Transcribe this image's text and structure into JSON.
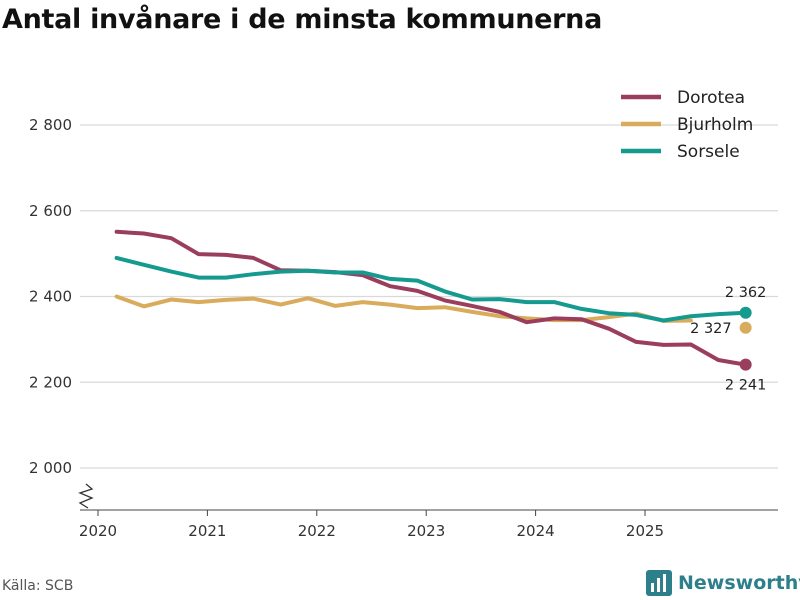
{
  "header": {
    "title": "Antal invånare i de minsta kommunerna"
  },
  "footer": {
    "source": "Källa: SCB",
    "brand": "Newsworthy"
  },
  "chart_data": {
    "type": "line",
    "title": "Antal invånare i de minsta kommunerna",
    "xlabel": "",
    "ylabel": "",
    "ylim": [
      2000,
      2900
    ],
    "y_ticks": [
      2000,
      2200,
      2400,
      2600,
      2800
    ],
    "y_tick_labels": [
      "2 000",
      "2 200",
      "2 400",
      "2 600",
      "2 800"
    ],
    "xlim": [
      2020.0,
      2026.2
    ],
    "x_ticks": [
      2020,
      2021,
      2022,
      2023,
      2024,
      2025
    ],
    "x_tick_labels": [
      "2020",
      "2021",
      "2022",
      "2023",
      "2024",
      "2025"
    ],
    "grid": "horizontal",
    "axis_break": true,
    "legend_position": "top-right",
    "x": [
      2020.17,
      2020.42,
      2020.67,
      2020.92,
      2021.17,
      2021.42,
      2021.67,
      2021.92,
      2022.17,
      2022.42,
      2022.67,
      2022.92,
      2023.17,
      2023.42,
      2023.67,
      2023.92,
      2024.17,
      2024.42,
      2024.67,
      2024.92,
      2025.17,
      2025.42,
      2025.67,
      2025.92
    ],
    "series": [
      {
        "name": "Dorotea",
        "color": "#9b3d5c",
        "values": [
          2551,
          2547,
          2536,
          2499,
          2497,
          2490,
          2461,
          2460,
          2457,
          2450,
          2424,
          2413,
          2391,
          2378,
          2364,
          2340,
          2349,
          2347,
          2325,
          2294,
          2287,
          2288,
          2252,
          2241
        ],
        "end_label": "2 241"
      },
      {
        "name": "Bjurholm",
        "color": "#d9ab5c",
        "values": [
          2400,
          2377,
          2393,
          2387,
          2392,
          2395,
          2381,
          2396,
          2378,
          2387,
          2381,
          2373,
          2375,
          2364,
          2354,
          2349,
          2345,
          2345,
          2352,
          2360,
          2343,
          2344,
          null,
          2327
        ],
        "end_label": "2 327"
      },
      {
        "name": "Sorsele",
        "color": "#159a8f",
        "values": [
          2490,
          2474,
          2458,
          2444,
          2444,
          2452,
          2458,
          2460,
          2456,
          2456,
          2441,
          2437,
          2412,
          2393,
          2394,
          2387,
          2387,
          2371,
          2361,
          2357,
          2344,
          2354,
          2359,
          2362
        ],
        "end_label": "2 362"
      }
    ]
  }
}
